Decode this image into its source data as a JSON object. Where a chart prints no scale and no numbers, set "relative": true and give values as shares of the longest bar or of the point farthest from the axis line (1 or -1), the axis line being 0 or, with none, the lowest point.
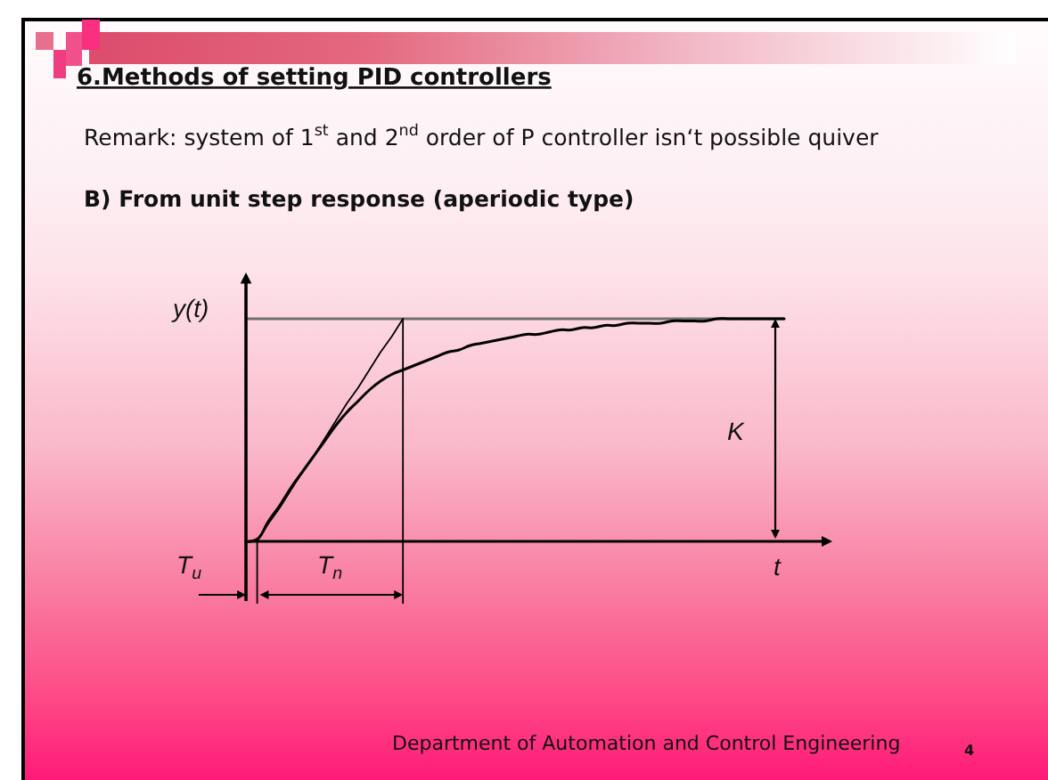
{
  "chart_data": {
    "type": "line",
    "title": "6.Methods of setting PID controllers",
    "subtitle": "Remark: system of 1$^{st}$ and 2$^{nd}$ order of P controller isn‘t possible quiver",
    "xlabel": "t",
    "ylabel": "y(t)",
    "relative": true,
    "categories": [
      null,
      null,
      null,
      null,
      null,
      null,
      null,
      null,
      null,
      null,
      null,
      null,
      null,
      null,
      null,
      null,
      null,
      null,
      null,
      null,
      null,
      null,
      null,
      null,
      null,
      null,
      null,
      null,
      null,
      null,
      null,
      null,
      null,
      null,
      null,
      null,
      null,
      null,
      null,
      null,
      null,
      null,
      null,
      null,
      null,
      null,
      null,
      null,
      null
    ],
    "series": [
      {
        "color": "#000000",
        "values": [
          0,
          0.01,
          0.09,
          0.16,
          0.24,
          0.31,
          0.38,
          0.45,
          0.52,
          0.58,
          0.63,
          0.68,
          0.72,
          0.75,
          0.77,
          0.79,
          0.81,
          0.83,
          0.85,
          0.86,
          0.88,
          0.89,
          0.9,
          0.91,
          0.92,
          0.93,
          0.93,
          0.94,
          0.95,
          0.95,
          0.96,
          0.96,
          0.97,
          0.97,
          0.98,
          0.98,
          0.98,
          0.98,
          0.99,
          0.99,
          0.99,
          0.99,
          1,
          1,
          1,
          1,
          1,
          1,
          1
        ]
      },
      {
        "color": "#000000",
        "values": [
          null,
          0,
          0.08,
          0.15,
          0.23,
          0.31,
          0.38,
          0.46,
          0.54,
          0.62,
          0.69,
          0.77,
          0.85,
          0.92,
          1,
          null,
          null,
          null,
          null,
          null,
          null,
          null,
          null,
          null,
          null,
          null,
          null,
          null,
          null,
          null,
          null,
          null,
          null,
          null,
          null,
          null,
          null,
          null,
          null,
          null,
          null,
          null,
          null,
          null,
          null,
          null,
          null,
          null,
          null
        ]
      }
    ],
    "ref_lines": [
      {
        "axis": "y",
        "value": 1,
        "color": "#707070"
      }
    ],
    "annotations": [
      "B) From unit step response (aperiodic type)",
      "T$_{u}$",
      "T$_{n}$",
      "K",
      "Department of Automation and Control Engineering",
      "4"
    ]
  }
}
